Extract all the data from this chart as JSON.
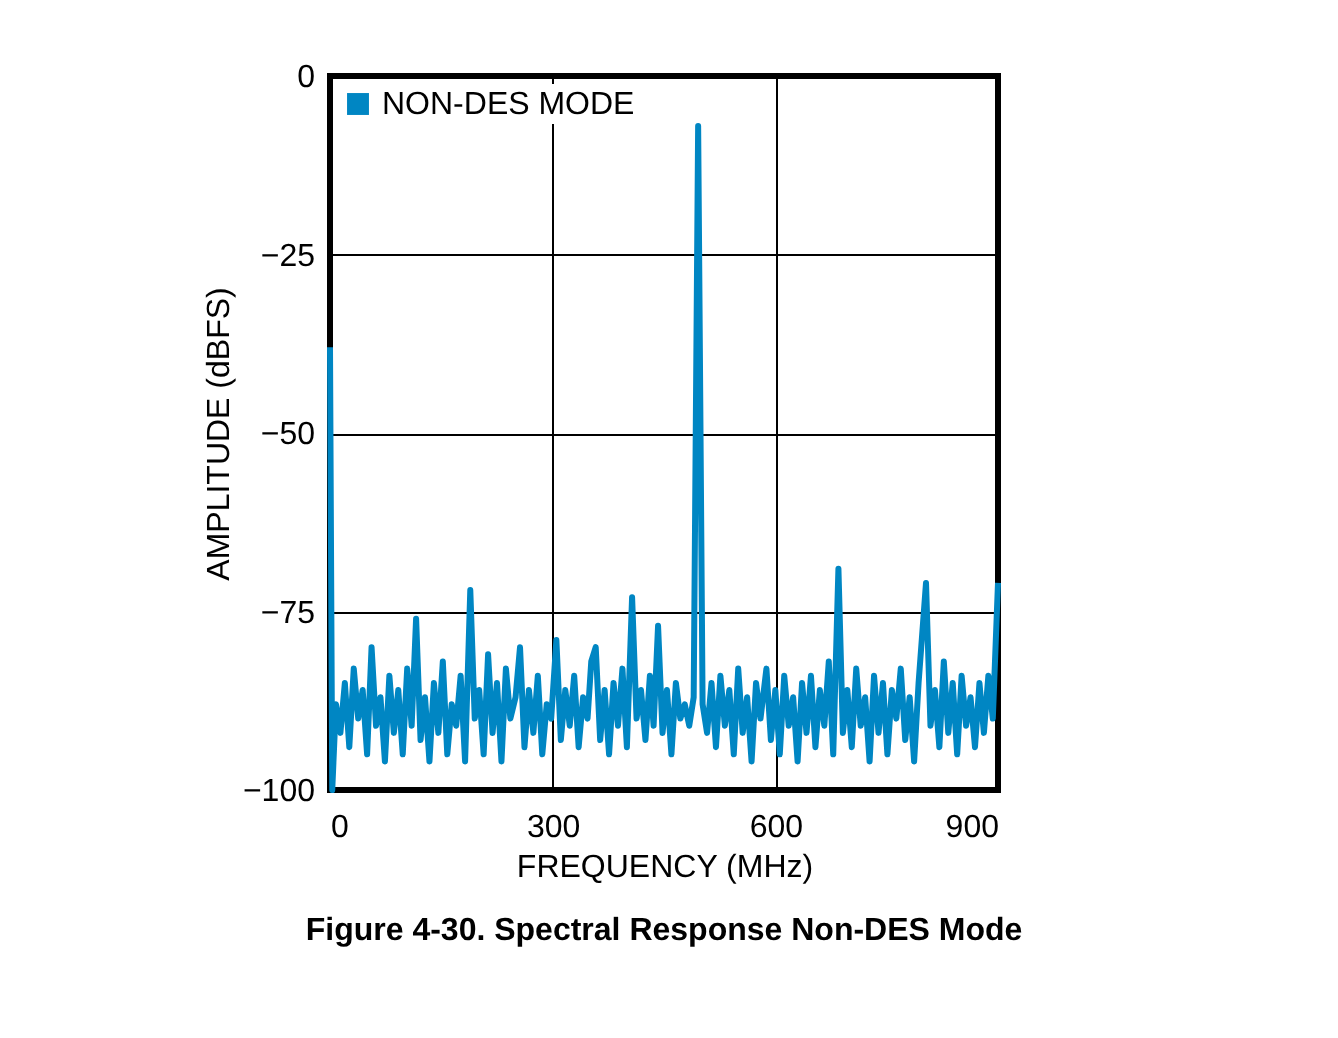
{
  "chart_data": {
    "type": "line",
    "title": "Figure 4-30. Spectral Response Non-DES Mode",
    "xlabel": "FREQUENCY (MHz)",
    "ylabel": "AMPLITUDE (dBFS)",
    "xlim": [
      0,
      900
    ],
    "xticks": [
      0,
      300,
      600,
      900
    ],
    "ylim": [
      -100,
      0
    ],
    "yticks": [
      -100,
      -75,
      -50,
      -25,
      0
    ],
    "grid": true,
    "legend": "top left",
    "marker": "none",
    "line_style": "solid",
    "series": [
      {
        "name": "NON-DES MODE",
        "color": "#0086c3",
        "x": [
          0,
          3,
          8,
          14,
          20,
          26,
          32,
          38,
          44,
          50,
          56,
          62,
          68,
          74,
          80,
          86,
          92,
          98,
          104,
          110,
          116,
          122,
          128,
          134,
          140,
          146,
          152,
          158,
          164,
          170,
          176,
          182,
          189,
          195,
          201,
          207,
          213,
          219,
          225,
          231,
          237,
          243,
          250,
          256,
          262,
          268,
          274,
          280,
          286,
          292,
          298,
          305,
          311,
          317,
          323,
          329,
          335,
          341,
          347,
          352,
          358,
          364,
          370,
          376,
          382,
          388,
          394,
          400,
          407,
          413,
          419,
          425,
          431,
          436,
          442,
          448,
          454,
          460,
          466,
          472,
          478,
          484,
          490,
          496,
          502,
          508,
          514,
          520,
          526,
          532,
          538,
          544,
          550,
          556,
          562,
          568,
          574,
          580,
          588,
          594,
          600,
          606,
          612,
          618,
          624,
          630,
          636,
          642,
          648,
          654,
          660,
          666,
          672,
          678,
          685,
          691,
          697,
          703,
          709,
          715,
          721,
          727,
          733,
          739,
          745,
          751,
          757,
          763,
          769,
          775,
          781,
          787,
          793,
          803,
          809,
          815,
          821,
          827,
          833,
          839,
          845,
          851,
          857,
          863,
          869,
          875,
          881,
          887,
          893,
          900
        ],
        "values": [
          -38,
          -100,
          -88,
          -92,
          -85,
          -94,
          -83,
          -90,
          -86,
          -95,
          -80,
          -91,
          -87,
          -96,
          -84,
          -92,
          -86,
          -95,
          -83,
          -91,
          -76,
          -93,
          -87,
          -96,
          -85,
          -92,
          -82,
          -95,
          -88,
          -91,
          -84,
          -96,
          -72,
          -90,
          -86,
          -95,
          -81,
          -92,
          -85,
          -96,
          -83,
          -90,
          -87,
          -80,
          -94,
          -86,
          -92,
          -84,
          -95,
          -88,
          -90,
          -79,
          -93,
          -86,
          -91,
          -84,
          -94,
          -87,
          -90,
          -82,
          -80,
          -93,
          -86,
          -95,
          -85,
          -91,
          -83,
          -94,
          -73,
          -90,
          -86,
          -93,
          -84,
          -91,
          -77,
          -92,
          -86,
          -95,
          -85,
          -90,
          -88,
          -91,
          -87,
          -7,
          -88,
          -92,
          -85,
          -94,
          -84,
          -91,
          -86,
          -95,
          -83,
          -92,
          -87,
          -96,
          -85,
          -90,
          -83,
          -93,
          -86,
          -95,
          -84,
          -91,
          -87,
          -96,
          -85,
          -92,
          -84,
          -94,
          -86,
          -91,
          -82,
          -95,
          -69,
          -92,
          -86,
          -94,
          -83,
          -91,
          -87,
          -96,
          -84,
          -92,
          -85,
          -95,
          -86,
          -90,
          -83,
          -93,
          -87,
          -96,
          -85,
          -71,
          -91,
          -86,
          -94,
          -82,
          -92,
          -85,
          -95,
          -84,
          -91,
          -87,
          -94,
          -85,
          -92,
          -84,
          -90,
          -71
        ]
      }
    ]
  }
}
